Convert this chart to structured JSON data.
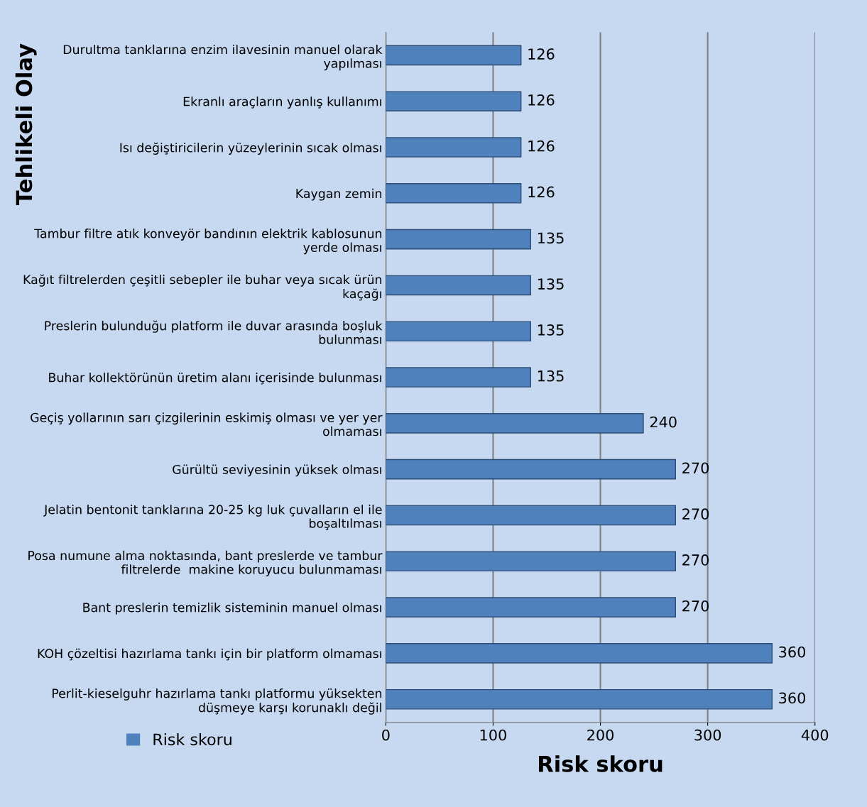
{
  "chart_data": {
    "type": "bar",
    "orientation": "horizontal",
    "xlabel": "Risk skoru",
    "ylabel": "Tehlikeli Olay",
    "categories": [
      "Durultma tanklarına enzim ilavesinin manuel olarak\nyapılması",
      "Ekranlı araçların yanlış kullanımı",
      "Isı değiştiricilerin yüzeylerinin sıcak olması",
      "Kaygan zemin",
      "Tambur filtre atık konveyör bandının elektrik kablosunun\nyerde olması",
      "Kağıt filtrelerden çeşitli sebepler ile buhar veya sıcak ürün\nkaçağı",
      "Preslerin bulunduğu platform ile duvar arasında boşluk\nbulunması",
      "Buhar kollektörünün üretim alanı içerisinde bulunması",
      "Geçiş yollarının sarı çizgilerinin eskimiş olması ve yer yer\nolmaması",
      "Gürültü seviyesinin yüksek olması",
      "Jelatin bentonit tanklarına 20-25 kg luk çuvalların el ile\nboşaltılması",
      "Posa numune alma noktasında, bant preslerde ve tambur\nfiltrelerde  makine koruyucu bulunmaması",
      "Bant preslerin temizlik sisteminin manuel olması",
      "KOH çözeltisi hazırlama tankı için bir platform olmaması",
      "Perlit-kieselguhr hazırlama tankı platformu yüksekten\ndüşmeye karşı korunaklı değil"
    ],
    "series": [
      {
        "name": "Risk skoru",
        "color": "#4f81bd",
        "values": [
          126,
          126,
          126,
          126,
          135,
          135,
          135,
          135,
          240,
          270,
          270,
          270,
          270,
          360,
          360
        ]
      }
    ],
    "xlim": [
      0,
      400
    ],
    "xticks": [
      0,
      100,
      200,
      300,
      400
    ],
    "grid": "x",
    "legend": "bottom left",
    "data_labels": true
  }
}
